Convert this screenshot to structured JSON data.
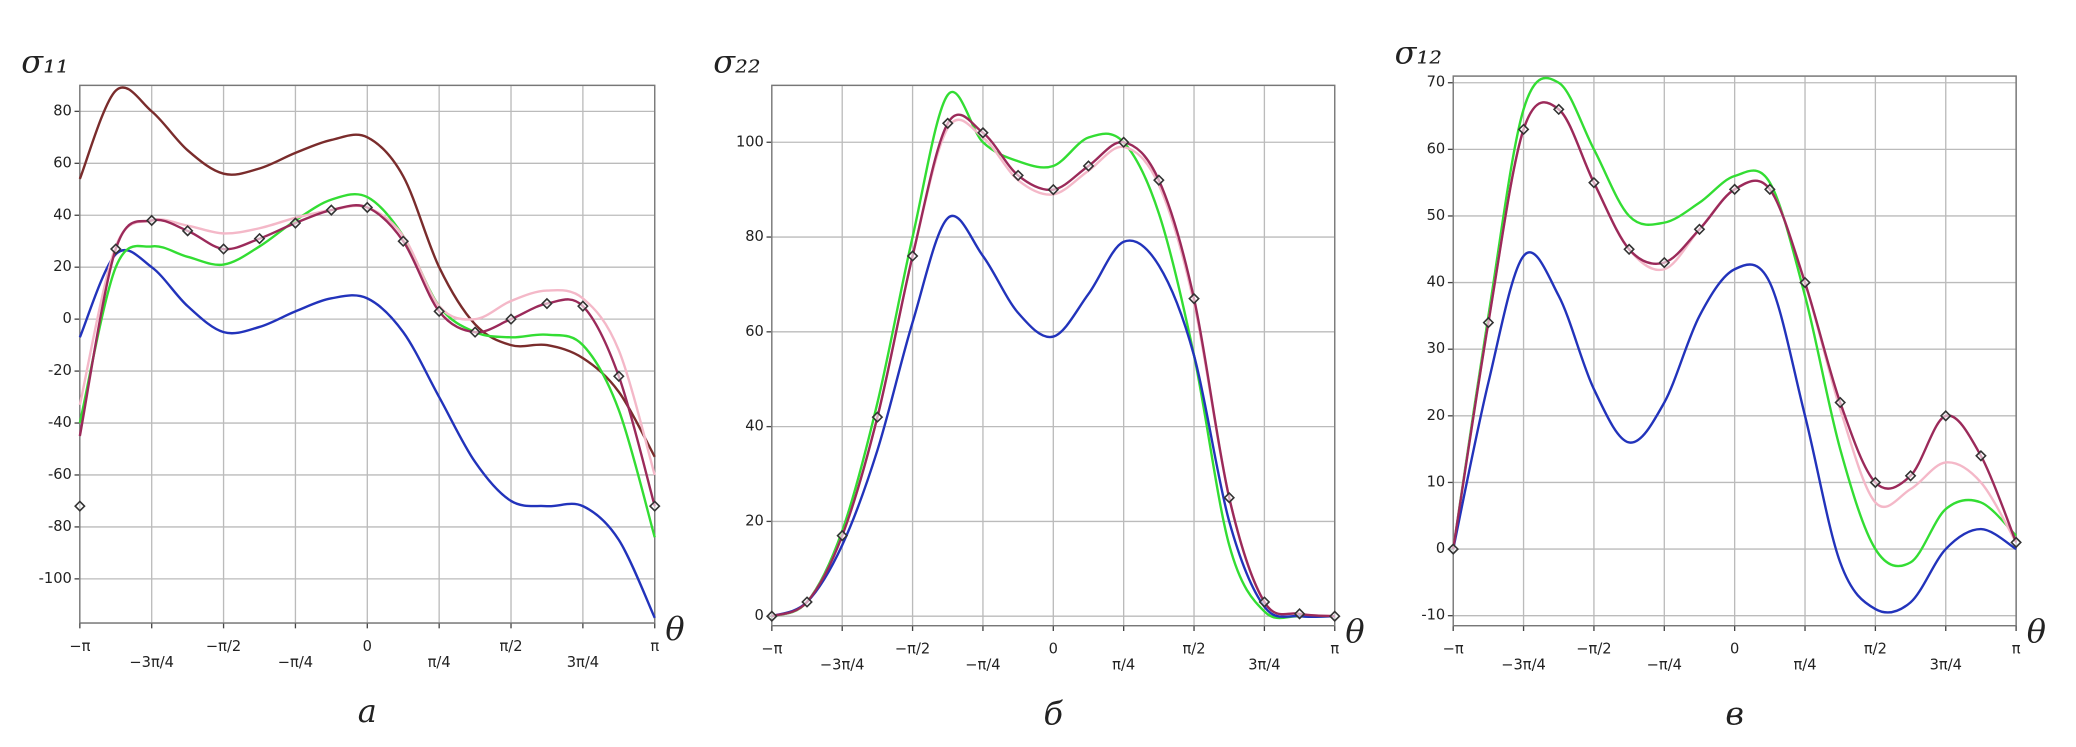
{
  "chart_data": [
    {
      "type": "line",
      "ylabel": "σ₁₁",
      "xlabel": "θ",
      "caption": "а",
      "grid": true,
      "x": [
        -3.1416,
        -2.7489,
        -2.3562,
        -1.9635,
        -1.5708,
        -1.1781,
        -0.7854,
        -0.3927,
        0,
        0.3927,
        0.7854,
        1.1781,
        1.5708,
        1.9635,
        2.3562,
        2.7489,
        3.1416
      ],
      "xlim": [
        -3.1416,
        3.1416
      ],
      "ylim": [
        -117,
        90
      ],
      "xticks": [
        {
          "value": -3.1416,
          "label": "−π"
        },
        {
          "value": -2.3562,
          "label": "−3π/4"
        },
        {
          "value": -1.5708,
          "label": "−π/2"
        },
        {
          "value": -0.7854,
          "label": "−π/4"
        },
        0,
        {
          "value": 0.7854,
          "label": "π/4"
        },
        {
          "value": 1.5708,
          "label": "π/2"
        },
        {
          "value": 2.3562,
          "label": "3π/4"
        },
        {
          "value": 3.1416,
          "label": "π"
        }
      ],
      "yticks": [
        -100,
        -80,
        -60,
        -40,
        -20,
        0,
        20,
        40,
        60,
        80
      ],
      "series": [
        {
          "color": "#7a2c2c",
          "values": [
            54,
            88,
            80,
            65,
            56,
            58,
            64,
            69,
            70,
            55,
            20,
            -2,
            -10,
            -10,
            -15,
            -28,
            -53
          ]
        },
        {
          "color": "#2233bb",
          "values": [
            -7,
            25,
            20,
            5,
            -5,
            -3,
            3,
            8,
            8,
            -5,
            -30,
            -55,
            -70,
            -72,
            -72,
            -85,
            -115
          ]
        },
        {
          "color": "#33dd33",
          "values": [
            -40,
            20,
            28,
            24,
            21,
            28,
            38,
            46,
            47,
            32,
            5,
            -5,
            -7,
            -6,
            -10,
            -35,
            -84
          ]
        },
        {
          "color": "#f4b8c8",
          "values": [
            -33,
            28,
            38,
            36,
            33,
            35,
            39,
            42,
            43,
            32,
            5,
            0,
            7,
            11,
            8,
            -12,
            -60
          ]
        },
        {
          "color": "#9b2a5a",
          "values": [
            -45,
            27,
            38,
            34,
            27,
            31,
            37,
            42,
            43,
            30,
            3,
            -5,
            0,
            6,
            5,
            -22,
            -72
          ]
        },
        {
          "color": "#333333",
          "marker": "diamond",
          "values": [
            -72,
            27,
            38,
            34,
            27,
            31,
            37,
            42,
            43,
            30,
            3,
            -5,
            0,
            6,
            5,
            -22,
            -72
          ]
        }
      ]
    },
    {
      "type": "line",
      "ylabel": "σ₂₂",
      "xlabel": "θ",
      "caption": "б",
      "grid": true,
      "x": [
        -3.1416,
        -2.7489,
        -2.3562,
        -1.9635,
        -1.5708,
        -1.1781,
        -0.7854,
        -0.3927,
        0,
        0.3927,
        0.7854,
        1.1781,
        1.5708,
        1.9635,
        2.3562,
        2.7489,
        3.1416
      ],
      "xlim": [
        -3.1416,
        3.1416
      ],
      "ylim": [
        -2,
        112
      ],
      "xticks": [
        {
          "value": -3.1416,
          "label": "−π"
        },
        {
          "value": -2.3562,
          "label": "−3π/4"
        },
        {
          "value": -1.5708,
          "label": "−π/2"
        },
        {
          "value": -0.7854,
          "label": "−π/4"
        },
        0,
        {
          "value": 0.7854,
          "label": "π/4"
        },
        {
          "value": 1.5708,
          "label": "π/2"
        },
        {
          "value": 2.3562,
          "label": "3π/4"
        },
        {
          "value": 3.1416,
          "label": "π"
        }
      ],
      "yticks": [
        0,
        20,
        40,
        60,
        80,
        100
      ],
      "series": [
        {
          "color": "#33dd33",
          "values": [
            0,
            3,
            18,
            45,
            80,
            110,
            100,
            96,
            95,
            101,
            100,
            85,
            55,
            15,
            1,
            0,
            0
          ]
        },
        {
          "color": "#f4b8c8",
          "values": [
            0,
            3,
            17,
            42,
            76,
            103,
            101,
            92,
            89,
            94,
            99,
            91,
            66,
            25,
            3,
            0.5,
            0
          ]
        },
        {
          "color": "#2233bb",
          "values": [
            0,
            3,
            15,
            35,
            62,
            84,
            76,
            64,
            59,
            68,
            79,
            74,
            55,
            20,
            2,
            0,
            0
          ]
        },
        {
          "color": "#9b2a5a",
          "values": [
            0,
            3,
            17,
            42,
            76,
            104,
            102,
            93,
            90,
            95,
            100,
            92,
            67,
            25,
            3,
            0.5,
            0
          ]
        },
        {
          "color": "#333333",
          "marker": "diamond",
          "values": [
            0,
            3,
            17,
            42,
            76,
            104,
            102,
            93,
            90,
            95,
            100,
            92,
            67,
            25,
            3,
            0.5,
            0
          ]
        }
      ]
    },
    {
      "type": "line",
      "ylabel": "σ₁₂",
      "xlabel": "θ",
      "caption": "в",
      "grid": true,
      "x": [
        -3.1416,
        -2.7489,
        -2.3562,
        -1.9635,
        -1.5708,
        -1.1781,
        -0.7854,
        -0.3927,
        0,
        0.3927,
        0.7854,
        1.1781,
        1.5708,
        1.9635,
        2.3562,
        2.7489,
        3.1416
      ],
      "xlim": [
        -3.1416,
        3.1416
      ],
      "ylim": [
        -11.5,
        71
      ],
      "xticks": [
        {
          "value": -3.1416,
          "label": "−π"
        },
        {
          "value": -2.3562,
          "label": "−3π/4"
        },
        {
          "value": -1.5708,
          "label": "−π/2"
        },
        {
          "value": -0.7854,
          "label": "−π/4"
        },
        0,
        {
          "value": 0.7854,
          "label": "π/4"
        },
        {
          "value": 1.5708,
          "label": "π/2"
        },
        {
          "value": 2.3562,
          "label": "3π/4"
        },
        {
          "value": 3.1416,
          "label": "π"
        }
      ],
      "yticks": [
        -10,
        0,
        10,
        20,
        30,
        40,
        50,
        60,
        70
      ],
      "series": [
        {
          "color": "#33dd33",
          "values": [
            0,
            35,
            66,
            70,
            60,
            50,
            49,
            52,
            56,
            55,
            38,
            15,
            0,
            -2,
            6,
            7,
            2
          ]
        },
        {
          "color": "#f4b8c8",
          "values": [
            0,
            34,
            63,
            66,
            55,
            45,
            42,
            48,
            54,
            54,
            40,
            21,
            7,
            9,
            13,
            10,
            1
          ]
        },
        {
          "color": "#2233bb",
          "values": [
            0,
            25,
            44,
            38,
            24,
            16,
            22,
            35,
            42,
            40,
            20,
            -2,
            -9,
            -8,
            0,
            3,
            0
          ]
        },
        {
          "color": "#9b2a5a",
          "values": [
            0,
            34,
            63,
            66,
            55,
            45,
            43,
            48,
            54,
            54,
            40,
            22,
            10,
            11,
            20,
            14,
            1
          ]
        },
        {
          "color": "#333333",
          "marker": "diamond",
          "values": [
            0,
            34,
            63,
            66,
            55,
            45,
            43,
            48,
            54,
            54,
            40,
            22,
            10,
            11,
            20,
            14,
            1
          ]
        }
      ]
    }
  ]
}
